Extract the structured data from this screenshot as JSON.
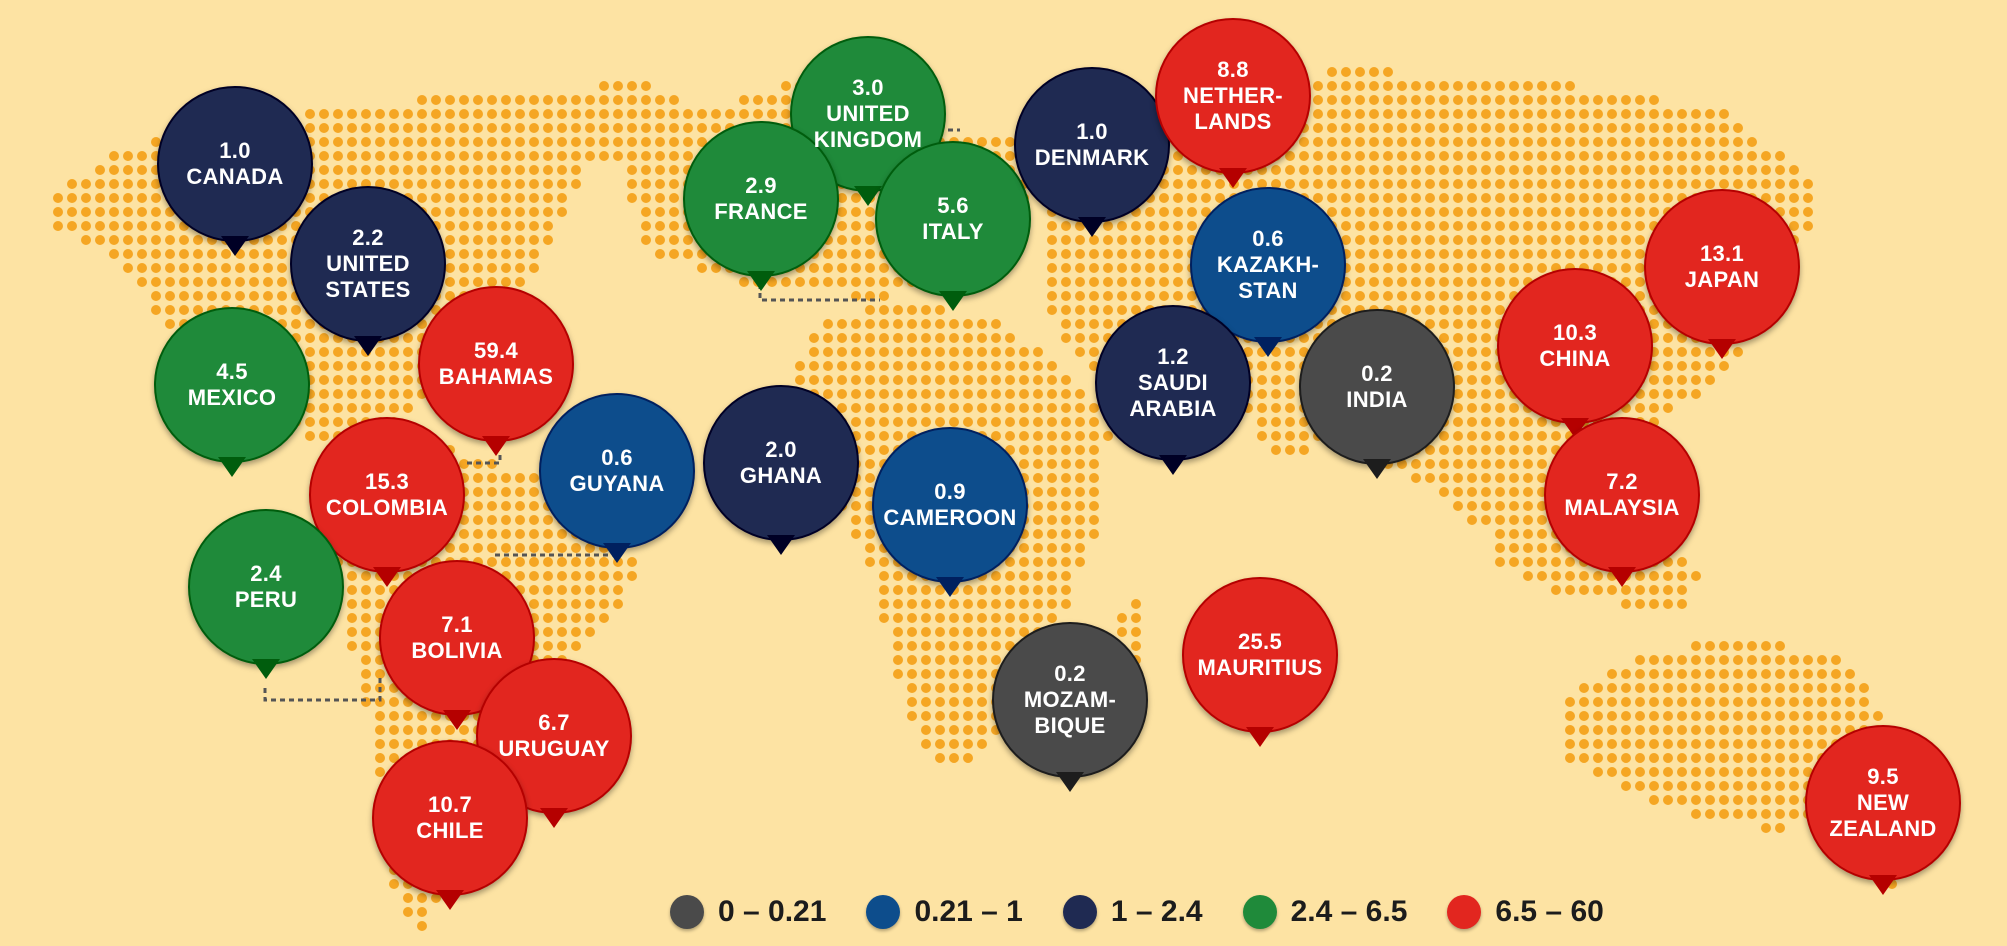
{
  "colors": {
    "background": "#fde3a3",
    "dots": "#f5a623",
    "connector": "#555555",
    "bins": [
      "#4a4a4a",
      "#0d4d8c",
      "#1f2a52",
      "#1f8a3a",
      "#e2261f"
    ]
  },
  "legend": [
    {
      "label": "0 – 0.21",
      "bin": 0
    },
    {
      "label": "0.21 – 1",
      "bin": 1
    },
    {
      "label": "1 – 2.4",
      "bin": 2
    },
    {
      "label": "2.4 – 6.5",
      "bin": 3
    },
    {
      "label": "6.5 – 60",
      "bin": 4
    }
  ],
  "countries": [
    {
      "id": "canada",
      "value": "1.0",
      "name": "CANADA",
      "bin": 2
    },
    {
      "id": "united-states",
      "value": "2.2",
      "name": "UNITED\nSTATES",
      "bin": 2
    },
    {
      "id": "mexico",
      "value": "4.5",
      "name": "MEXICO",
      "bin": 3
    },
    {
      "id": "bahamas",
      "value": "59.4",
      "name": "BAHAMAS",
      "bin": 4
    },
    {
      "id": "colombia",
      "value": "15.3",
      "name": "COLOMBIA",
      "bin": 4
    },
    {
      "id": "guyana",
      "value": "0.6",
      "name": "GUYANA",
      "bin": 1
    },
    {
      "id": "peru",
      "value": "2.4",
      "name": "PERU",
      "bin": 3
    },
    {
      "id": "bolivia",
      "value": "7.1",
      "name": "BOLIVIA",
      "bin": 4
    },
    {
      "id": "uruguay",
      "value": "6.7",
      "name": "URUGUAY",
      "bin": 4
    },
    {
      "id": "chile",
      "value": "10.7",
      "name": "CHILE",
      "bin": 4
    },
    {
      "id": "united-kingdom",
      "value": "3.0",
      "name": "UNITED\nKINGDOM",
      "bin": 3
    },
    {
      "id": "france",
      "value": "2.9",
      "name": "FRANCE",
      "bin": 3
    },
    {
      "id": "italy",
      "value": "5.6",
      "name": "ITALY",
      "bin": 3
    },
    {
      "id": "denmark",
      "value": "1.0",
      "name": "DENMARK",
      "bin": 2
    },
    {
      "id": "netherlands",
      "value": "8.8",
      "name": "NETHER-\nLANDS",
      "bin": 4
    },
    {
      "id": "kazakhstan",
      "value": "0.6",
      "name": "KAZAKH-\nSTAN",
      "bin": 1
    },
    {
      "id": "saudi-arabia",
      "value": "1.2",
      "name": "SAUDI\nARABIA",
      "bin": 2
    },
    {
      "id": "india",
      "value": "0.2",
      "name": "INDIA",
      "bin": 0
    },
    {
      "id": "ghana",
      "value": "2.0",
      "name": "GHANA",
      "bin": 2
    },
    {
      "id": "cameroon",
      "value": "0.9",
      "name": "CAMEROON",
      "bin": 1
    },
    {
      "id": "mozambique",
      "value": "0.2",
      "name": "MOZAM-\nBIQUE",
      "bin": 0
    },
    {
      "id": "mauritius",
      "value": "25.5",
      "name": "MAURITIUS",
      "bin": 4
    },
    {
      "id": "china",
      "value": "10.3",
      "name": "CHINA",
      "bin": 4
    },
    {
      "id": "japan",
      "value": "13.1",
      "name": "JAPAN",
      "bin": 4
    },
    {
      "id": "malaysia",
      "value": "7.2",
      "name": "MALAYSIA",
      "bin": 4
    },
    {
      "id": "new-zealand",
      "value": "9.5",
      "name": "NEW\nZEALAND",
      "bin": 4
    }
  ]
}
